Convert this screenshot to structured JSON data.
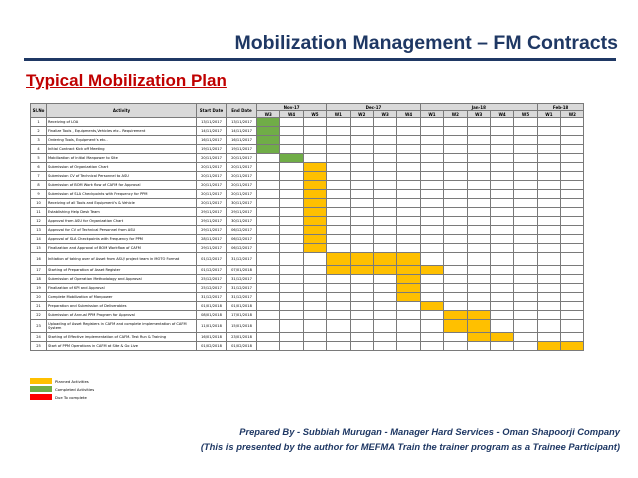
{
  "header": {
    "title": "Mobilization Management – FM Contracts",
    "subtitle": "Typical Mobilization Plan"
  },
  "gantt": {
    "col_slno": "Sl.No",
    "col_activity": "Activity",
    "col_start": "Start Date",
    "col_end": "End Date",
    "months": [
      {
        "label": "Nov-17",
        "span": 3
      },
      {
        "label": "Dec-17",
        "span": 4
      },
      {
        "label": "Jan-18",
        "span": 5
      },
      {
        "label": "Feb-18",
        "span": 2
      }
    ],
    "weeks": [
      "W3",
      "W4",
      "W5",
      "W1",
      "W2",
      "W3",
      "W4",
      "W1",
      "W2",
      "W3",
      "W4",
      "W5",
      "W1",
      "W2"
    ],
    "rows": [
      {
        "no": "1",
        "activity": "Receiving of LOA",
        "start": "13/11/2017",
        "end": "13/11/2017",
        "on": [
          0
        ],
        "done": [
          0
        ]
      },
      {
        "no": "2",
        "activity": "Finalize Tools , Equipments,Vehicles etc.. Requirement",
        "start": "14/11/2017",
        "end": "14/11/2017",
        "on": [
          0
        ],
        "done": [
          0
        ]
      },
      {
        "no": "3",
        "activity": "Ordering Tools, Equipment’s etc..",
        "start": "16/11/2017",
        "end": "16/11/2017",
        "on": [
          0
        ],
        "done": [
          0
        ]
      },
      {
        "no": "4",
        "activity": "Initial Contract Kick off Meeting",
        "start": "19/11/2017",
        "end": "19/11/2017",
        "on": [
          0
        ],
        "done": [
          0
        ]
      },
      {
        "no": "5",
        "activity": "Mobilization of initial Manpower to Site",
        "start": "20/11/2017",
        "end": "20/11/2017",
        "on": [
          1
        ],
        "done": [
          1
        ]
      },
      {
        "no": "6",
        "activity": "Submission of Organization Chart",
        "start": "20/11/2017",
        "end": "20/11/2017",
        "on": [
          2
        ],
        "done": []
      },
      {
        "no": "7",
        "activity": "Submission CV of Technical Personnel to ASU",
        "start": "20/11/2017",
        "end": "20/11/2017",
        "on": [
          2
        ],
        "done": []
      },
      {
        "no": "8",
        "activity": "Submission of BOM Work flow of CAFM for Approval",
        "start": "20/11/2017",
        "end": "20/11/2017",
        "on": [
          2
        ],
        "done": []
      },
      {
        "no": "9",
        "activity": "Submission of SLA Checkpoints with Frequency for PPM",
        "start": "20/11/2017",
        "end": "20/11/2017",
        "on": [
          2
        ],
        "done": []
      },
      {
        "no": "10",
        "activity": "Receiving of all Tools and Equipment’s & Vehicle",
        "start": "20/11/2017",
        "end": "30/11/2017",
        "on": [
          2
        ],
        "done": []
      },
      {
        "no": "11",
        "activity": "Establishing Help Desk Team",
        "start": "29/11/2017",
        "end": "29/11/2017",
        "on": [
          2
        ],
        "done": []
      },
      {
        "no": "12",
        "activity": "Approval from ASU for Organization Chart",
        "start": "29/11/2017",
        "end": "30/11/2017",
        "on": [
          2
        ],
        "done": []
      },
      {
        "no": "13",
        "activity": "Approval for CV of Technical Personnel from ASU",
        "start": "29/11/2017",
        "end": "06/12/2017",
        "on": [
          2
        ],
        "done": []
      },
      {
        "no": "14",
        "activity": "Approval of SLA Checkpoints with Frequency for PPM",
        "start": "28/11/2017",
        "end": "06/12/2017",
        "on": [
          2
        ],
        "done": []
      },
      {
        "no": "15",
        "activity": "Finalization and Approval of BOM Workflow of CAFM",
        "start": "29/11/2017",
        "end": "06/12/2017",
        "on": [
          2
        ],
        "done": []
      },
      {
        "no": "16",
        "activity": "Initiation of taking over of Asset from ASU/ project team in MOTO Format",
        "start": "01/12/2017",
        "end": "31/12/2017",
        "on": [
          3,
          4,
          5,
          6
        ],
        "done": [],
        "tall": true
      },
      {
        "no": "17",
        "activity": "Starting of Preparation of Asset Register",
        "start": "01/12/2017",
        "end": "07/01/2018",
        "on": [
          3,
          4,
          5,
          6,
          7
        ],
        "done": []
      },
      {
        "no": "18",
        "activity": "Submission of Operation Methodology and Approval",
        "start": "25/12/2017",
        "end": "31/12/2017",
        "on": [
          6
        ],
        "done": []
      },
      {
        "no": "19",
        "activity": "Finalization of KPI and Approval",
        "start": "25/12/2017",
        "end": "31/12/2017",
        "on": [
          6
        ],
        "done": []
      },
      {
        "no": "20",
        "activity": "Complete Mobilization of Manpower",
        "start": "31/12/2017",
        "end": "31/12/2017",
        "on": [
          6
        ],
        "done": []
      },
      {
        "no": "21",
        "activity": "Preparation and Submission of Deliverables",
        "start": "01/01/2018",
        "end": "01/01/2018",
        "on": [
          7
        ],
        "done": []
      },
      {
        "no": "22",
        "activity": "Submission of Annual PPM Program for Approval",
        "start": "08/01/2018",
        "end": "17/01/2018",
        "on": [
          8,
          9
        ],
        "done": []
      },
      {
        "no": "23",
        "activity": "Uploading of Asset Registers in CAFM and complete implementation of CAFM System",
        "start": "11/01/2018",
        "end": "15/01/2018",
        "on": [
          8,
          9
        ],
        "done": [],
        "tall": true
      },
      {
        "no": "24",
        "activity": "Starting of Effective implementation of CAFM- Test Run & Training",
        "start": "16/01/2018",
        "end": "23/01/2018",
        "on": [
          9,
          10
        ],
        "done": []
      },
      {
        "no": "25",
        "activity": "Start of PPM Operations in CAFM at Site & Go Live",
        "start": "01/02/2018",
        "end": "01/02/2018",
        "on": [
          12,
          13
        ],
        "done": []
      }
    ]
  },
  "legend": [
    {
      "label": "Planned Activities",
      "color": "#ffc000"
    },
    {
      "label": "Completed Activities",
      "color": "#70ad47"
    },
    {
      "label": "Due To complete",
      "color": "#ff0000"
    }
  ],
  "footer": {
    "line1": "Prepared By - Subbiah Murugan - Manager Hard Services - Oman Shapoorji Company",
    "line2": "(This is presented by the author for MEFMA Train the trainer program as a Trainee Participant)"
  }
}
